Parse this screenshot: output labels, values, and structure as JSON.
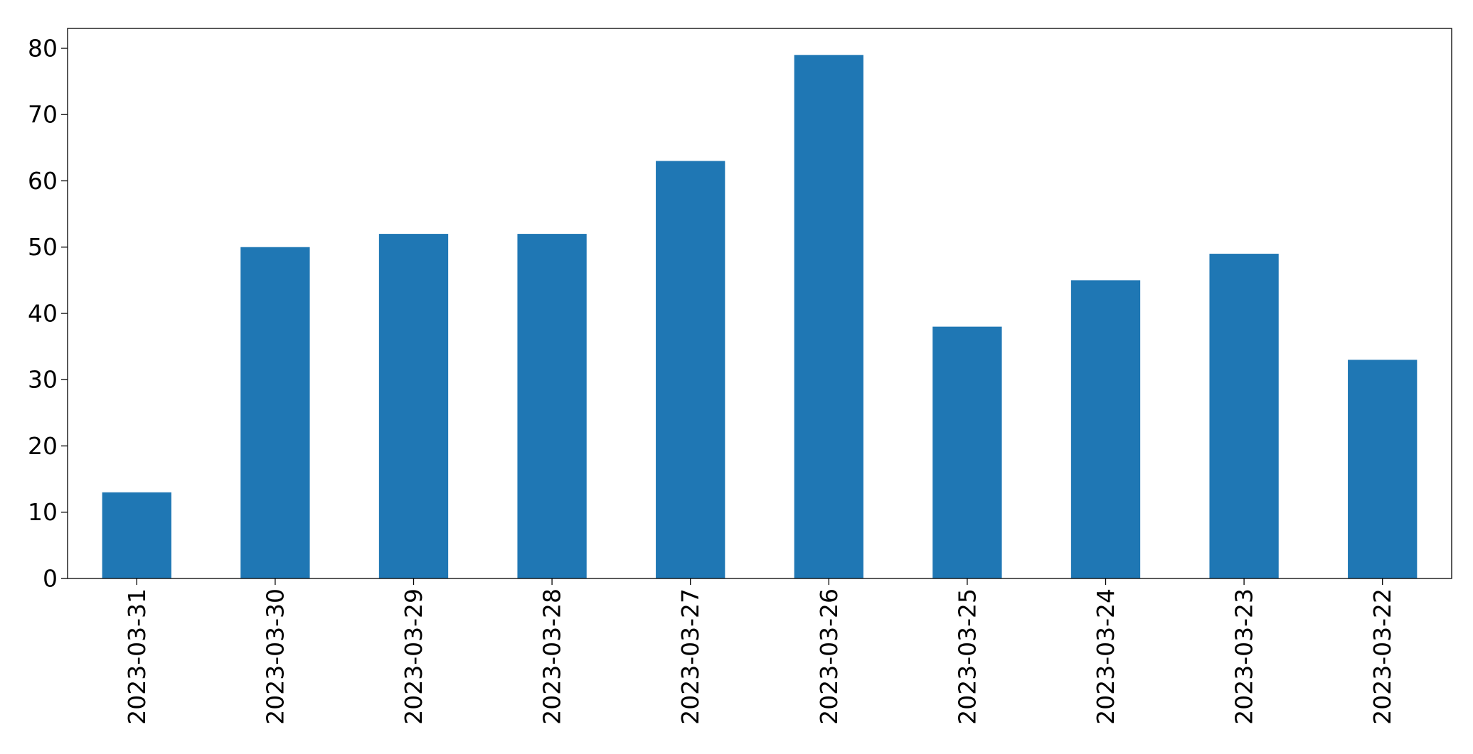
{
  "chart_data": {
    "type": "bar",
    "title": "",
    "xlabel": "",
    "ylabel": "",
    "categories": [
      "2023-03-31",
      "2023-03-30",
      "2023-03-29",
      "2023-03-28",
      "2023-03-27",
      "2023-03-26",
      "2023-03-25",
      "2023-03-24",
      "2023-03-23",
      "2023-03-22"
    ],
    "values": [
      13,
      50,
      52,
      52,
      63,
      79,
      38,
      45,
      49,
      33
    ],
    "ylim": [
      0,
      83
    ],
    "yticks": [
      0,
      10,
      20,
      30,
      40,
      50,
      60,
      70,
      80
    ],
    "bar_color": "#1f77b4",
    "grid": false,
    "legend": "none"
  }
}
